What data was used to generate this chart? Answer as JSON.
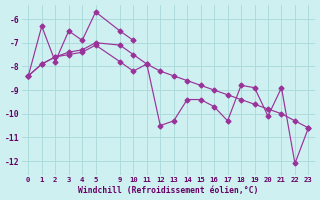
{
  "xlabel": "Windchill (Refroidissement éolien,°C)",
  "background_color": "#cff0f0",
  "grid_color": "#a8d8d8",
  "line_color": "#993399",
  "xlim": [
    -0.3,
    23.3
  ],
  "ylim": [
    -12.6,
    -5.4
  ],
  "xticks": [
    0,
    1,
    2,
    3,
    4,
    5,
    9,
    10,
    11,
    12,
    13,
    14,
    15,
    16,
    17,
    18,
    19,
    20,
    21,
    22,
    23
  ],
  "yticks": [
    -6,
    -7,
    -8,
    -9,
    -10,
    -11,
    -12
  ],
  "series1_x": [
    0,
    1,
    2,
    3,
    4,
    5,
    9,
    10
  ],
  "series1_y": [
    -8.4,
    -6.3,
    -7.8,
    -6.5,
    -6.9,
    -5.7,
    -6.5,
    -6.9
  ],
  "series2_x": [
    0,
    1,
    2,
    3,
    4,
    5,
    9,
    10,
    11,
    12,
    13,
    14,
    15,
    16,
    17,
    18,
    19,
    20,
    21,
    22,
    23
  ],
  "series2_y": [
    -8.4,
    -7.9,
    -7.6,
    -7.5,
    -7.4,
    -7.1,
    -7.8,
    -8.2,
    -7.9,
    -10.5,
    -10.3,
    -9.4,
    -9.4,
    -9.7,
    -10.3,
    -8.8,
    -8.9,
    -10.1,
    -8.9,
    -12.1,
    -10.6
  ],
  "series3_x": [
    0,
    1,
    2,
    3,
    4,
    5,
    9,
    10,
    11,
    12,
    13,
    14,
    15,
    16,
    17,
    18,
    19,
    20,
    21,
    22,
    23
  ],
  "series3_y": [
    -8.4,
    -7.9,
    -7.6,
    -7.4,
    -7.3,
    -7.0,
    -7.1,
    -7.5,
    -7.9,
    -8.2,
    -8.4,
    -8.6,
    -8.8,
    -9.0,
    -9.2,
    -9.4,
    -9.6,
    -9.8,
    -10.0,
    -10.3,
    -10.6
  ]
}
